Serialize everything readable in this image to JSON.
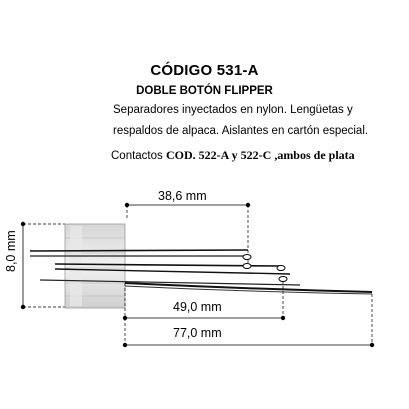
{
  "header": {
    "code": "CÓDIGO 531-A",
    "type": "DOBLE BOTÓN FLIPPER",
    "description_line1": "Separadores inyectados en nylon. Lengüetas y",
    "description_line2": "respaldos de alpaca. Aislantes en cartón especial.",
    "contacts_label": "Contactos",
    "contacts_value": "COD. 522-A y 522-C ,ambos de plata"
  },
  "dimensions": {
    "top_width": "38,6 mm",
    "mid_width": "49,0 mm",
    "total_width": "77,0 mm",
    "stack_height": "8,0 mm"
  }
}
